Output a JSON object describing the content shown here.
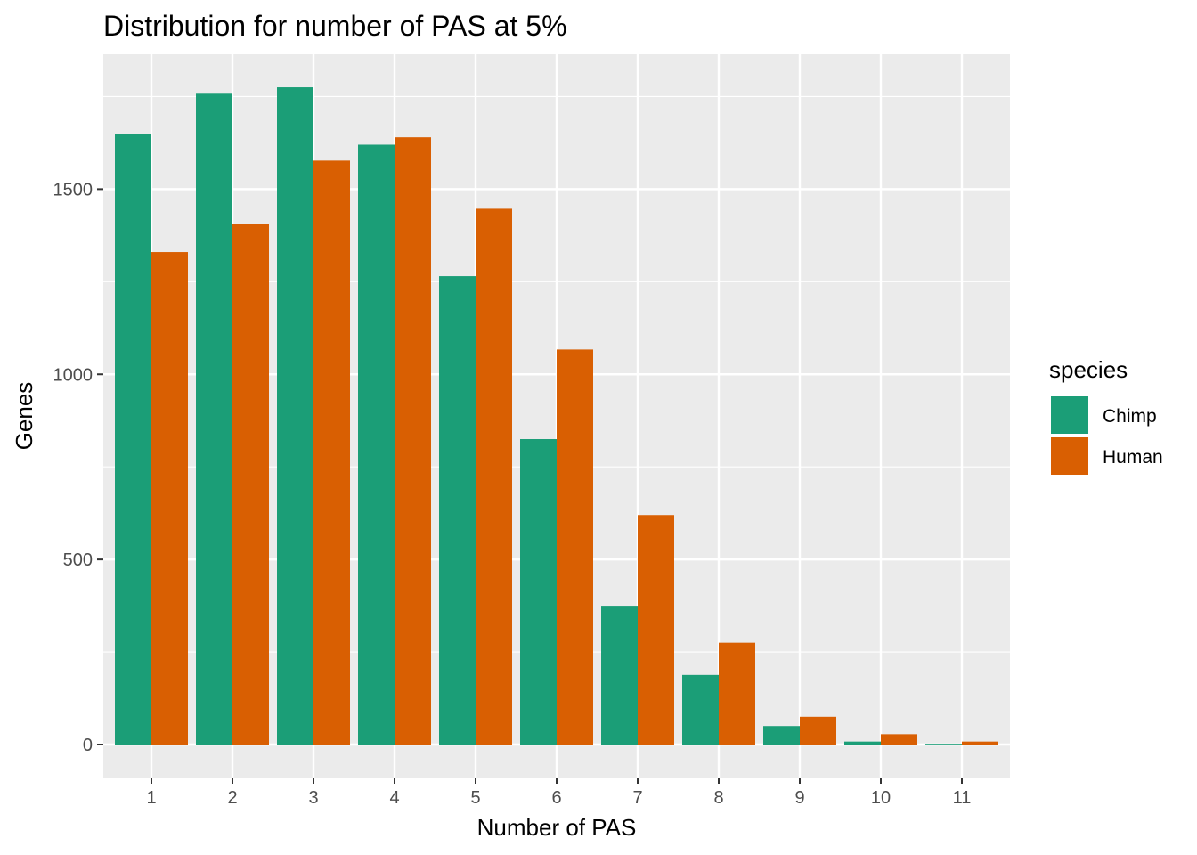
{
  "chart_data": {
    "type": "bar",
    "title": "Distribution for number of PAS at 5%",
    "xlabel": "Number of PAS",
    "ylabel": "Genes",
    "categories": [
      "1",
      "2",
      "3",
      "4",
      "5",
      "6",
      "7",
      "8",
      "9",
      "10",
      "11"
    ],
    "series": [
      {
        "name": "Chimp",
        "color": "#1b9e77",
        "values": [
          1650,
          1760,
          1775,
          1620,
          1265,
          825,
          375,
          188,
          50,
          8,
          2
        ]
      },
      {
        "name": "Human",
        "color": "#d95f02",
        "values": [
          1330,
          1405,
          1577,
          1640,
          1447,
          1067,
          620,
          275,
          75,
          28,
          8
        ]
      }
    ],
    "yticks": [
      0,
      500,
      1000,
      1500
    ],
    "ylim": [
      -88,
      1845
    ],
    "legend": {
      "title": "species",
      "position": "right"
    },
    "grid": true,
    "panel_background": "#ebebeb",
    "grid_color": "#ffffff"
  }
}
